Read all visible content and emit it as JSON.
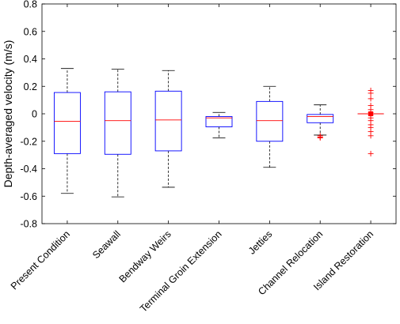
{
  "chart_data": {
    "type": "box",
    "ylabel": "Depth-averaged velocity (m/s)",
    "xlabel": "",
    "title": "",
    "ylim": [
      -0.8,
      0.8
    ],
    "yticks": [
      -0.8,
      -0.6,
      -0.4,
      -0.2,
      0,
      0.2,
      0.4,
      0.6,
      0.8
    ],
    "ytick_labels": [
      "-0.8",
      "-0.6",
      "-0.4",
      "-0.2",
      "0",
      "0.2",
      "0.4",
      "0.6",
      "0.8"
    ],
    "categories": [
      "Present Condition",
      "Seawall",
      "Bendway Weirs",
      "Terminal Groin Extension",
      "Jetties",
      "Channel Relocation",
      "Island Restoration"
    ],
    "boxes": [
      {
        "whisker_low": -0.58,
        "q1": -0.29,
        "median": -0.055,
        "q3": 0.155,
        "whisker_high": 0.33,
        "outliers": []
      },
      {
        "whisker_low": -0.605,
        "q1": -0.295,
        "median": -0.05,
        "q3": 0.16,
        "whisker_high": 0.325,
        "outliers": []
      },
      {
        "whisker_low": -0.535,
        "q1": -0.27,
        "median": -0.045,
        "q3": 0.165,
        "whisker_high": 0.315,
        "outliers": []
      },
      {
        "whisker_low": -0.175,
        "q1": -0.095,
        "median": -0.03,
        "q3": -0.02,
        "whisker_high": 0.01,
        "outliers": []
      },
      {
        "whisker_low": -0.39,
        "q1": -0.2,
        "median": -0.05,
        "q3": 0.09,
        "whisker_high": 0.2,
        "outliers": []
      },
      {
        "whisker_low": -0.155,
        "q1": -0.065,
        "median": -0.02,
        "q3": -0.005,
        "whisker_high": 0.065,
        "outliers": [
          -0.16,
          -0.17,
          -0.175
        ]
      },
      {
        "whisker_low": 0,
        "q1": 0,
        "median": 0,
        "q3": 0,
        "whisker_high": 0,
        "outliers": [
          0.17,
          0.15,
          0.11,
          0.06,
          0.03,
          0.01,
          -0.01,
          -0.03,
          -0.05,
          -0.08,
          -0.1,
          -0.13,
          -0.16,
          -0.29
        ]
      }
    ],
    "colors": {
      "box": "#0000ff",
      "median": "#ff0000",
      "whisker": "#000000",
      "outlier": "#ff0000",
      "axes": "#000000"
    },
    "grid": false
  }
}
